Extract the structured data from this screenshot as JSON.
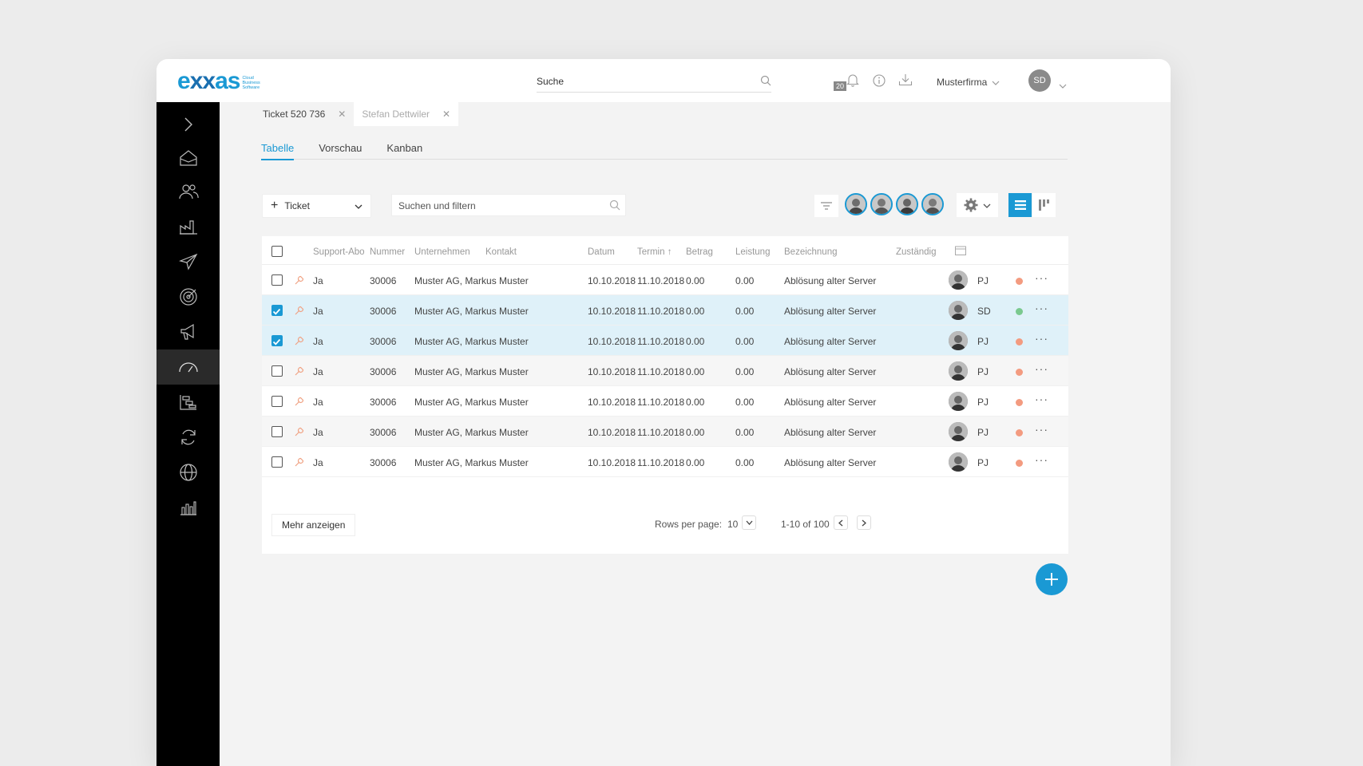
{
  "brand": {
    "name_part1": "e",
    "name_x": "xx",
    "name_part2": "as",
    "sub_line1": "Cloud",
    "sub_line2": "Business",
    "sub_line3": "Software"
  },
  "header": {
    "search_label": "Suche",
    "notification_count": "20",
    "company": "Musterfirma",
    "user_initials": "SD"
  },
  "doc_tabs": [
    {
      "label": "Ticket 520 736",
      "active": true
    },
    {
      "label": "Stefan Dettwiler",
      "active": false
    }
  ],
  "view_tabs": [
    {
      "label": "Tabelle",
      "active": true
    },
    {
      "label": "Vorschau",
      "active": false
    },
    {
      "label": "Kanban",
      "active": false
    }
  ],
  "toolbar": {
    "new_button": "Ticket",
    "filter_placeholder": "Suchen und filtern"
  },
  "columns": {
    "support": "Support-Abo",
    "nummer": "Nummer",
    "unternehmen": "Unternehmen",
    "kontakt": "Kontakt",
    "datum": "Datum",
    "termin": "Termin",
    "betrag": "Betrag",
    "leistung": "Leistung",
    "bezeichnung": "Bezeichnung",
    "zustaendig": "Zuständig"
  },
  "rows": [
    {
      "checked": false,
      "support": "Ja",
      "nummer": "30006",
      "firma": "Muster AG, Markus Muster",
      "datum": "10.10.2018",
      "termin": "11.10.2018",
      "betrag": "0.00",
      "leistung": "0.00",
      "bezeichnung": "Ablösung alter Server",
      "initials": "PJ",
      "status_color": "#f39b80"
    },
    {
      "checked": true,
      "support": "Ja",
      "nummer": "30006",
      "firma": "Muster AG, Markus Muster",
      "datum": "10.10.2018",
      "termin": "11.10.2018",
      "betrag": "0.00",
      "leistung": "0.00",
      "bezeichnung": "Ablösung alter Server",
      "initials": "SD",
      "status_color": "#7ac98f"
    },
    {
      "checked": true,
      "support": "Ja",
      "nummer": "30006",
      "firma": "Muster AG, Markus Muster",
      "datum": "10.10.2018",
      "termin": "11.10.2018",
      "betrag": "0.00",
      "leistung": "0.00",
      "bezeichnung": "Ablösung alter Server",
      "initials": "PJ",
      "status_color": "#f39b80"
    },
    {
      "checked": false,
      "support": "Ja",
      "nummer": "30006",
      "firma": "Muster AG, Markus Muster",
      "datum": "10.10.2018",
      "termin": "11.10.2018",
      "betrag": "0.00",
      "leistung": "0.00",
      "bezeichnung": "Ablösung alter Server",
      "initials": "PJ",
      "status_color": "#f39b80"
    },
    {
      "checked": false,
      "support": "Ja",
      "nummer": "30006",
      "firma": "Muster AG, Markus Muster",
      "datum": "10.10.2018",
      "termin": "11.10.2018",
      "betrag": "0.00",
      "leistung": "0.00",
      "bezeichnung": "Ablösung alter Server",
      "initials": "PJ",
      "status_color": "#f39b80"
    },
    {
      "checked": false,
      "support": "Ja",
      "nummer": "30006",
      "firma": "Muster AG, Markus Muster",
      "datum": "10.10.2018",
      "termin": "11.10.2018",
      "betrag": "0.00",
      "leistung": "0.00",
      "bezeichnung": "Ablösung alter Server",
      "initials": "PJ",
      "status_color": "#f39b80"
    },
    {
      "checked": false,
      "support": "Ja",
      "nummer": "30006",
      "firma": "Muster AG, Markus Muster",
      "datum": "10.10.2018",
      "termin": "11.10.2018",
      "betrag": "0.00",
      "leistung": "0.00",
      "bezeichnung": "Ablösung alter Server",
      "initials": "PJ",
      "status_color": "#f39b80"
    }
  ],
  "footer": {
    "more_button": "Mehr anzeigen",
    "rows_per_page_label": "Rows per page:",
    "rows_per_page_value": "10",
    "range": "1-10 of 100"
  },
  "colors": {
    "accent": "#1a99d4",
    "sidebar": "#000000",
    "selected_row": "#dff1f9"
  }
}
